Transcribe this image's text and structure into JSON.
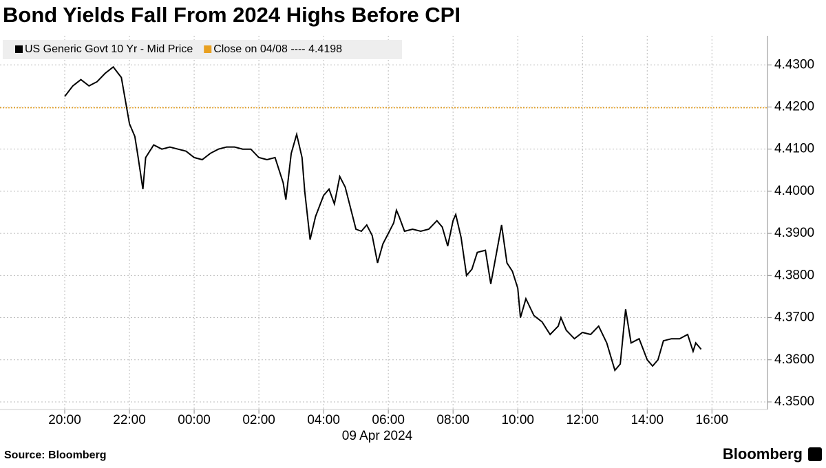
{
  "chart_data": {
    "type": "line",
    "title": "Bond Yields Fall From 2024 Highs Before CPI",
    "source": "Source: Bloomberg",
    "brand": "Bloomberg",
    "x_sublabel": "09 Apr 2024",
    "x": [
      "20:00",
      "20:15",
      "20:30",
      "20:45",
      "21:00",
      "21:15",
      "21:30",
      "21:45",
      "22:00",
      "22:10",
      "22:15",
      "22:25",
      "22:30",
      "22:45",
      "23:00",
      "23:15",
      "23:30",
      "23:45",
      "00:00",
      "00:15",
      "00:30",
      "00:45",
      "01:00",
      "01:15",
      "01:30",
      "01:45",
      "02:00",
      "02:15",
      "02:30",
      "02:45",
      "02:50",
      "03:00",
      "03:10",
      "03:20",
      "03:25",
      "03:35",
      "03:45",
      "04:00",
      "04:10",
      "04:20",
      "04:30",
      "04:40",
      "04:50",
      "05:00",
      "05:10",
      "05:20",
      "05:30",
      "05:40",
      "05:50",
      "06:00",
      "06:10",
      "06:15",
      "06:20",
      "06:30",
      "06:45",
      "07:00",
      "07:15",
      "07:30",
      "07:40",
      "07:50",
      "08:00",
      "08:05",
      "08:15",
      "08:25",
      "08:35",
      "08:45",
      "09:00",
      "09:10",
      "09:20",
      "09:30",
      "09:40",
      "09:50",
      "10:00",
      "10:05",
      "10:15",
      "10:30",
      "10:45",
      "11:00",
      "11:15",
      "11:20",
      "11:30",
      "11:45",
      "12:00",
      "12:15",
      "12:30",
      "12:45",
      "13:00",
      "13:10",
      "13:20",
      "13:30",
      "13:45",
      "14:00",
      "14:10",
      "14:20",
      "14:30",
      "14:45",
      "15:00",
      "15:15",
      "15:25",
      "15:30",
      "15:40"
    ],
    "series": [
      {
        "name": "US Generic Govt 10 Yr - Mid Price",
        "color": "#000000",
        "values": [
          4.4225,
          4.425,
          4.4265,
          4.425,
          4.426,
          4.428,
          4.4295,
          4.427,
          4.416,
          4.413,
          4.409,
          4.4005,
          4.408,
          4.411,
          4.41,
          4.4105,
          4.41,
          4.4095,
          4.408,
          4.4075,
          4.409,
          4.41,
          4.4105,
          4.4105,
          4.41,
          4.41,
          4.408,
          4.4075,
          4.408,
          4.402,
          4.398,
          4.409,
          4.4135,
          4.408,
          4.4,
          4.3885,
          4.394,
          4.399,
          4.4005,
          4.397,
          4.4035,
          4.401,
          4.396,
          4.391,
          4.3905,
          4.392,
          4.3895,
          4.383,
          4.3875,
          4.39,
          4.3925,
          4.3955,
          4.394,
          4.3905,
          4.391,
          4.3905,
          4.391,
          4.393,
          4.3915,
          4.387,
          4.393,
          4.3945,
          4.389,
          4.38,
          4.3815,
          4.3855,
          4.386,
          4.378,
          4.385,
          4.392,
          4.383,
          4.381,
          4.377,
          4.37,
          4.3745,
          4.3705,
          4.369,
          4.366,
          4.368,
          4.37,
          4.367,
          4.365,
          4.3665,
          4.366,
          4.368,
          4.364,
          4.3575,
          4.359,
          4.372,
          4.364,
          4.365,
          4.36,
          4.3585,
          4.36,
          4.3645,
          4.365,
          4.365,
          4.366,
          4.362,
          4.364,
          4.3625
        ]
      }
    ],
    "reference": {
      "name": "Close on 04/08 ---- 4.4198",
      "value": 4.4198,
      "color": "#e8a020"
    },
    "xlim": [
      "18:00",
      "17:43"
    ],
    "xticks": [
      "20:00",
      "22:00",
      "00:00",
      "02:00",
      "04:00",
      "06:00",
      "08:00",
      "10:00",
      "12:00",
      "14:00",
      "16:00"
    ],
    "ylim": [
      4.3482,
      4.4369
    ],
    "yticks": [
      {
        "value": 4.35,
        "label": "4.3500"
      },
      {
        "value": 4.36,
        "label": "4.3600"
      },
      {
        "value": 4.37,
        "label": "4.3700"
      },
      {
        "value": 4.38,
        "label": "4.3800"
      },
      {
        "value": 4.39,
        "label": "4.3900"
      },
      {
        "value": 4.4,
        "label": "4.4000"
      },
      {
        "value": 4.41,
        "label": "4.4100"
      },
      {
        "value": 4.42,
        "label": "4.4200"
      },
      {
        "value": 4.43,
        "label": "4.4300"
      }
    ],
    "grid": true
  }
}
